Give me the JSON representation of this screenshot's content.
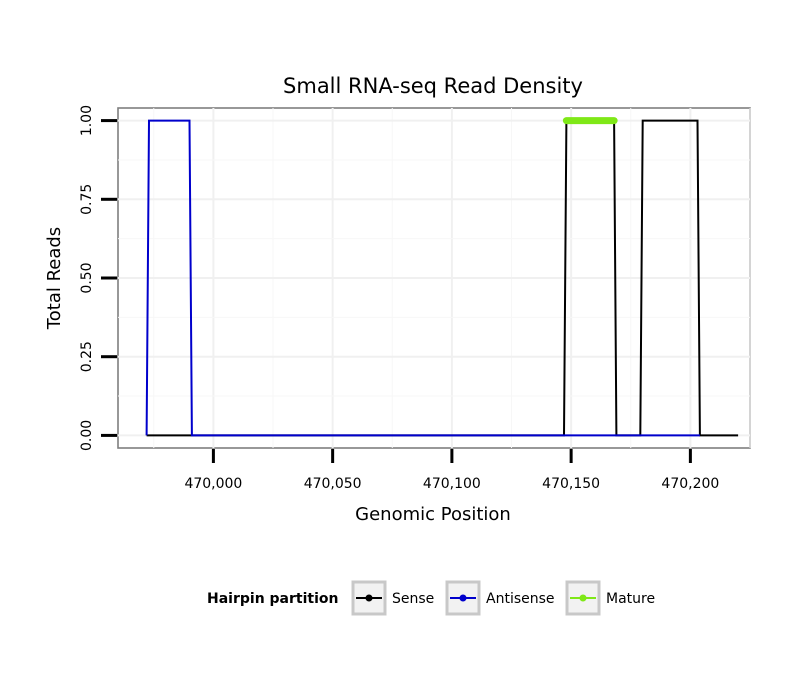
{
  "chart_data": {
    "type": "line",
    "title": "Small RNA-seq Read Density",
    "xlabel": "Genomic Position",
    "ylabel": "Total Reads",
    "xlim": [
      469960,
      470225
    ],
    "ylim": [
      -0.04,
      1.04
    ],
    "xticks": [
      470000,
      470050,
      470100,
      470150,
      470200
    ],
    "xtick_labels": [
      "470,000",
      "470,050",
      "470,100",
      "470,150",
      "470,200"
    ],
    "yticks": [
      0,
      0.25,
      0.5,
      0.75,
      1.0
    ],
    "ytick_labels": [
      "0.00",
      "0.25",
      "0.50",
      "0.75",
      "1.00"
    ],
    "grid": true,
    "legend": {
      "position": "bottom",
      "title": "Hairpin partition",
      "entries": [
        "Sense",
        "Antisense",
        "Mature"
      ]
    },
    "series": [
      {
        "name": "Sense",
        "color": "#000000",
        "points": [
          [
            469972,
            0
          ],
          [
            470147,
            0
          ],
          [
            470148,
            1
          ],
          [
            470168,
            1
          ],
          [
            470169,
            0
          ],
          [
            470179,
            0
          ],
          [
            470180,
            1
          ],
          [
            470203,
            1
          ],
          [
            470204,
            0
          ],
          [
            470220,
            0
          ]
        ]
      },
      {
        "name": "Antisense",
        "color": "#0000cc",
        "points": [
          [
            469972,
            0
          ],
          [
            469973,
            1
          ],
          [
            469990,
            1
          ],
          [
            469991,
            0
          ],
          [
            470147,
            0
          ],
          [
            470168,
            0
          ],
          [
            470179,
            0
          ],
          [
            470204,
            0
          ]
        ]
      },
      {
        "name": "Mature",
        "color": "#7fe817",
        "points": [
          [
            470148,
            1
          ],
          [
            470168,
            1
          ]
        ]
      }
    ]
  }
}
